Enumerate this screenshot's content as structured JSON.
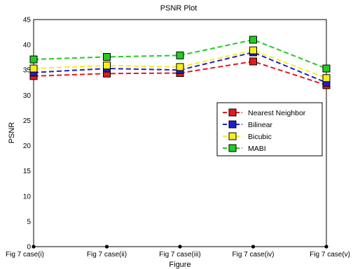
{
  "chart_data": {
    "type": "line",
    "title": "PSNR Plot",
    "xlabel": "Figure",
    "ylabel": "PSNR",
    "categories": [
      "Fig 7 case(i)",
      "Fig 7 case(ii)",
      "Fig 7 case(iii)",
      "Fig 7 case(iv)",
      "Fig 7 case(v)"
    ],
    "ylim": [
      0,
      45
    ],
    "yticks": [
      0,
      5,
      10,
      15,
      20,
      25,
      30,
      35,
      40,
      45
    ],
    "grid": false,
    "legend_position": "right",
    "series": [
      {
        "name": "Nearest Neighbor",
        "values": [
          33.8,
          34.3,
          34.4,
          36.7,
          32.0
        ],
        "color": "#e41a1c"
      },
      {
        "name": "Bilinear",
        "values": [
          34.5,
          35.3,
          35.0,
          38.5,
          32.5
        ],
        "color": "#1f1fd0"
      },
      {
        "name": "Bicubic",
        "values": [
          35.3,
          35.9,
          35.6,
          38.9,
          33.4
        ],
        "color": "#f5f01a"
      },
      {
        "name": "MABI",
        "values": [
          37.1,
          37.6,
          37.9,
          41.0,
          35.3
        ],
        "color": "#22cc22"
      }
    ],
    "baseline_markers": [
      0,
      0,
      0,
      0,
      0
    ]
  }
}
